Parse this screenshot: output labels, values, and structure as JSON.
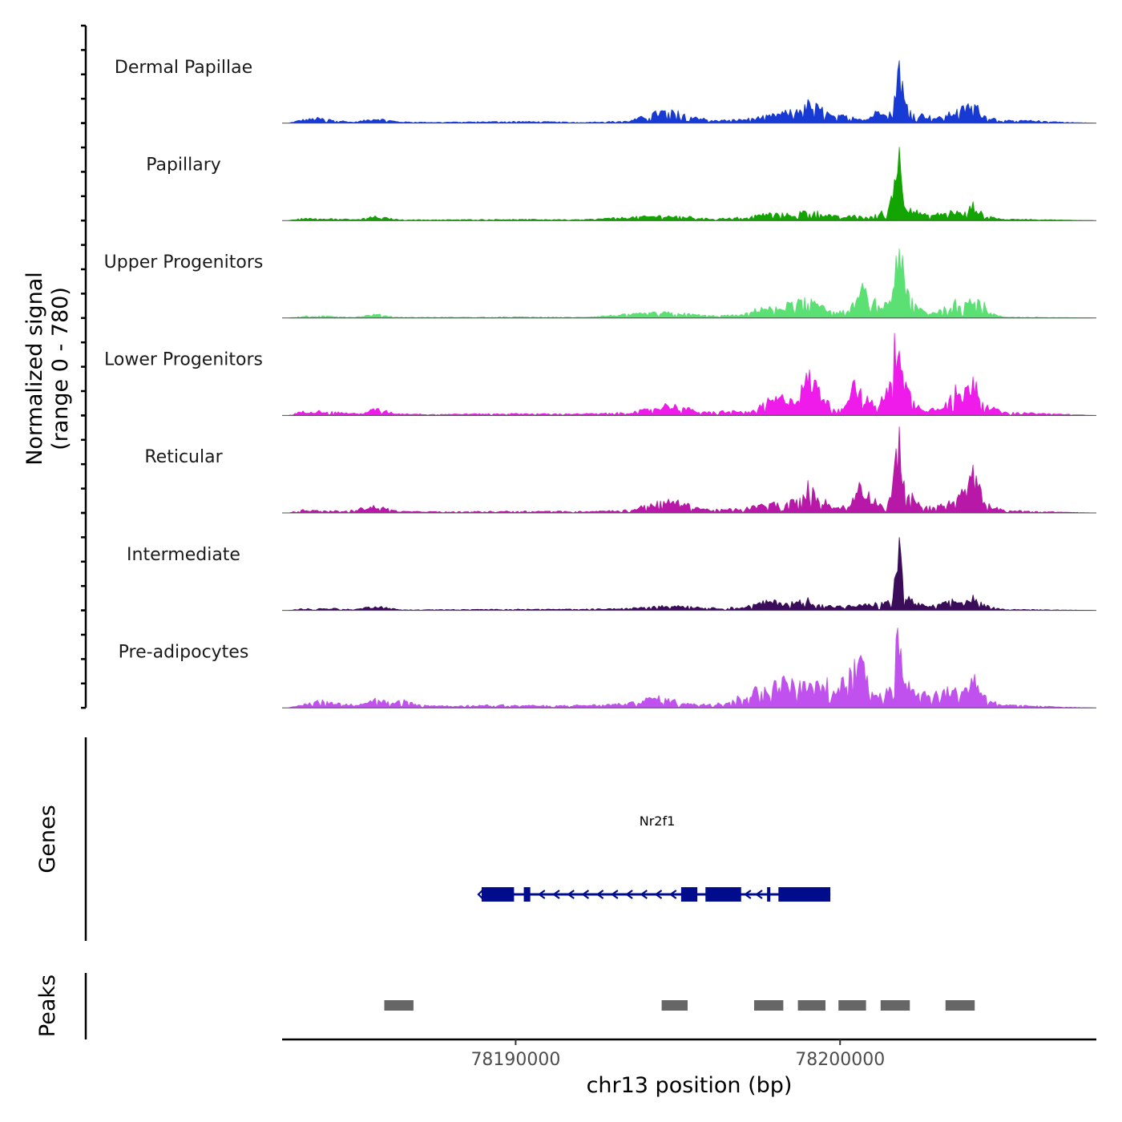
{
  "chart_data": {
    "type": "area",
    "title": "",
    "y_axis_title": "Normalized signal",
    "y_axis_subtitle": "(range 0 - 780)",
    "ylim": [
      0,
      780
    ],
    "xlabel": "chr13 position (bp)",
    "xlim": [
      78182800,
      78207900
    ],
    "x_ticks": [
      {
        "value": 78190000,
        "label": "78190000"
      },
      {
        "value": 78200000,
        "label": "78200000"
      }
    ],
    "tracks": [
      {
        "name": "Dermal Papillae",
        "color": "#1739d4",
        "peak_scale": 0.62,
        "profile": [
          [
            78183000,
            0
          ],
          [
            78183400,
            8
          ],
          [
            78183900,
            12
          ],
          [
            78184400,
            8
          ],
          [
            78185000,
            2
          ],
          [
            78185700,
            12
          ],
          [
            78186400,
            3
          ],
          [
            78187500,
            2
          ],
          [
            78188500,
            3
          ],
          [
            78190000,
            4
          ],
          [
            78191200,
            3
          ],
          [
            78192000,
            2
          ],
          [
            78193500,
            5
          ],
          [
            78194500,
            30
          ],
          [
            78195200,
            25
          ],
          [
            78196000,
            6
          ],
          [
            78197000,
            9
          ],
          [
            78197800,
            18
          ],
          [
            78198500,
            30
          ],
          [
            78199000,
            50
          ],
          [
            78199400,
            38
          ],
          [
            78199800,
            15
          ],
          [
            78200300,
            20
          ],
          [
            78200800,
            8
          ],
          [
            78201300,
            40
          ],
          [
            78201600,
            28
          ],
          [
            78201800,
            165
          ],
          [
            78202000,
            50
          ],
          [
            78202300,
            25
          ],
          [
            78202600,
            20
          ],
          [
            78203000,
            12
          ],
          [
            78203500,
            28
          ],
          [
            78203900,
            40
          ],
          [
            78204100,
            55
          ],
          [
            78204400,
            20
          ],
          [
            78205000,
            6
          ],
          [
            78206000,
            6
          ],
          [
            78207000,
            2
          ],
          [
            78207800,
            0
          ]
        ]
      },
      {
        "name": "Papillary",
        "color": "#12a400",
        "peak_scale": 0.68,
        "profile": [
          [
            78183000,
            0
          ],
          [
            78183400,
            5
          ],
          [
            78184400,
            5
          ],
          [
            78185000,
            2
          ],
          [
            78185700,
            10
          ],
          [
            78186400,
            2
          ],
          [
            78188000,
            2
          ],
          [
            78190000,
            3
          ],
          [
            78192000,
            2
          ],
          [
            78194500,
            12
          ],
          [
            78195200,
            10
          ],
          [
            78196000,
            4
          ],
          [
            78197000,
            8
          ],
          [
            78197800,
            18
          ],
          [
            78198500,
            15
          ],
          [
            78199000,
            25
          ],
          [
            78199500,
            18
          ],
          [
            78200000,
            8
          ],
          [
            78200500,
            12
          ],
          [
            78201000,
            10
          ],
          [
            78201500,
            30
          ],
          [
            78201800,
            180
          ],
          [
            78202000,
            45
          ],
          [
            78202300,
            25
          ],
          [
            78202700,
            12
          ],
          [
            78203100,
            18
          ],
          [
            78203500,
            25
          ],
          [
            78203800,
            15
          ],
          [
            78204100,
            40
          ],
          [
            78204400,
            15
          ],
          [
            78205000,
            3
          ],
          [
            78206000,
            3
          ],
          [
            78207000,
            1
          ],
          [
            78207800,
            0
          ]
        ]
      },
      {
        "name": "Upper Progenitors",
        "color": "#5ae073",
        "peak_scale": 0.8,
        "profile": [
          [
            78183000,
            0
          ],
          [
            78183400,
            5
          ],
          [
            78184400,
            5
          ],
          [
            78185000,
            2
          ],
          [
            78185700,
            10
          ],
          [
            78186400,
            2
          ],
          [
            78188000,
            2
          ],
          [
            78190000,
            3
          ],
          [
            78192000,
            2
          ],
          [
            78194500,
            15
          ],
          [
            78195200,
            12
          ],
          [
            78196000,
            6
          ],
          [
            78197000,
            8
          ],
          [
            78197600,
            30
          ],
          [
            78198000,
            25
          ],
          [
            78198500,
            40
          ],
          [
            78199000,
            55
          ],
          [
            78199400,
            45
          ],
          [
            78199800,
            15
          ],
          [
            78200300,
            22
          ],
          [
            78200700,
            80
          ],
          [
            78201000,
            50
          ],
          [
            78201300,
            30
          ],
          [
            78201600,
            60
          ],
          [
            78201800,
            230
          ],
          [
            78202000,
            80
          ],
          [
            78202300,
            40
          ],
          [
            78202700,
            12
          ],
          [
            78203200,
            25
          ],
          [
            78203500,
            45
          ],
          [
            78203800,
            35
          ],
          [
            78204000,
            70
          ],
          [
            78204300,
            55
          ],
          [
            78204600,
            15
          ],
          [
            78205000,
            3
          ],
          [
            78206000,
            2
          ],
          [
            78207000,
            1
          ],
          [
            78207800,
            0
          ]
        ]
      },
      {
        "name": "Lower Progenitors",
        "color": "#ee1bea",
        "peak_scale": 0.92,
        "profile": [
          [
            78183000,
            0
          ],
          [
            78183400,
            10
          ],
          [
            78184000,
            12
          ],
          [
            78184600,
            8
          ],
          [
            78185200,
            4
          ],
          [
            78185700,
            18
          ],
          [
            78186300,
            5
          ],
          [
            78187500,
            3
          ],
          [
            78188500,
            4
          ],
          [
            78190000,
            5
          ],
          [
            78191200,
            4
          ],
          [
            78192500,
            5
          ],
          [
            78193500,
            8
          ],
          [
            78194200,
            18
          ],
          [
            78194700,
            30
          ],
          [
            78195200,
            20
          ],
          [
            78195800,
            8
          ],
          [
            78196500,
            12
          ],
          [
            78197300,
            10
          ],
          [
            78197800,
            40
          ],
          [
            78198300,
            50
          ],
          [
            78198700,
            45
          ],
          [
            78199000,
            110
          ],
          [
            78199300,
            80
          ],
          [
            78199700,
            25
          ],
          [
            78200100,
            20
          ],
          [
            78200400,
            100
          ],
          [
            78200700,
            55
          ],
          [
            78201100,
            25
          ],
          [
            78201500,
            70
          ],
          [
            78201800,
            260
          ],
          [
            78202000,
            90
          ],
          [
            78202300,
            30
          ],
          [
            78202700,
            15
          ],
          [
            78203100,
            25
          ],
          [
            78203500,
            70
          ],
          [
            78203800,
            55
          ],
          [
            78204100,
            110
          ],
          [
            78204500,
            30
          ],
          [
            78205000,
            8
          ],
          [
            78206000,
            6
          ],
          [
            78207000,
            3
          ],
          [
            78207800,
            0
          ]
        ]
      },
      {
        "name": "Reticular",
        "color": "#b818a8",
        "peak_scale": 0.78,
        "profile": [
          [
            78183000,
            0
          ],
          [
            78183400,
            8
          ],
          [
            78184000,
            6
          ],
          [
            78184800,
            5
          ],
          [
            78185700,
            20
          ],
          [
            78186400,
            4
          ],
          [
            78188000,
            3
          ],
          [
            78190000,
            5
          ],
          [
            78192000,
            4
          ],
          [
            78193500,
            8
          ],
          [
            78194200,
            25
          ],
          [
            78194800,
            35
          ],
          [
            78195400,
            20
          ],
          [
            78196000,
            8
          ],
          [
            78197000,
            12
          ],
          [
            78197800,
            25
          ],
          [
            78198300,
            30
          ],
          [
            78198800,
            35
          ],
          [
            78199000,
            75
          ],
          [
            78199300,
            50
          ],
          [
            78199800,
            15
          ],
          [
            78200300,
            20
          ],
          [
            78200600,
            90
          ],
          [
            78200900,
            50
          ],
          [
            78201300,
            20
          ],
          [
            78201600,
            45
          ],
          [
            78201800,
            230
          ],
          [
            78202000,
            75
          ],
          [
            78202300,
            35
          ],
          [
            78202700,
            15
          ],
          [
            78203200,
            25
          ],
          [
            78203500,
            35
          ],
          [
            78203800,
            60
          ],
          [
            78204100,
            110
          ],
          [
            78204500,
            25
          ],
          [
            78205000,
            8
          ],
          [
            78206000,
            4
          ],
          [
            78207000,
            2
          ],
          [
            78207800,
            0
          ]
        ]
      },
      {
        "name": "Intermediate",
        "color": "#3a0c5a",
        "peak_scale": 0.62,
        "profile": [
          [
            78183000,
            0
          ],
          [
            78183400,
            4
          ],
          [
            78184400,
            5
          ],
          [
            78185000,
            2
          ],
          [
            78185700,
            12
          ],
          [
            78186400,
            2
          ],
          [
            78188000,
            2
          ],
          [
            78190000,
            3
          ],
          [
            78192000,
            3
          ],
          [
            78193500,
            5
          ],
          [
            78194500,
            15
          ],
          [
            78195200,
            12
          ],
          [
            78196000,
            6
          ],
          [
            78197000,
            8
          ],
          [
            78197800,
            25
          ],
          [
            78198300,
            20
          ],
          [
            78198700,
            22
          ],
          [
            78199000,
            30
          ],
          [
            78199400,
            18
          ],
          [
            78199800,
            10
          ],
          [
            78200300,
            12
          ],
          [
            78200800,
            15
          ],
          [
            78201300,
            20
          ],
          [
            78201600,
            25
          ],
          [
            78201800,
            175
          ],
          [
            78202000,
            45
          ],
          [
            78202300,
            20
          ],
          [
            78202700,
            10
          ],
          [
            78203200,
            18
          ],
          [
            78203500,
            28
          ],
          [
            78203800,
            20
          ],
          [
            78204100,
            35
          ],
          [
            78204400,
            15
          ],
          [
            78205000,
            3
          ],
          [
            78206000,
            2
          ],
          [
            78207000,
            1
          ],
          [
            78207800,
            0
          ]
        ]
      },
      {
        "name": "Pre-adipocytes",
        "color": "#c151ee",
        "peak_scale": 0.8,
        "profile": [
          [
            78183000,
            0
          ],
          [
            78183400,
            8
          ],
          [
            78183900,
            20
          ],
          [
            78184400,
            15
          ],
          [
            78185000,
            8
          ],
          [
            78185700,
            25
          ],
          [
            78186200,
            12
          ],
          [
            78186600,
            22
          ],
          [
            78187000,
            8
          ],
          [
            78188000,
            5
          ],
          [
            78189500,
            8
          ],
          [
            78191000,
            6
          ],
          [
            78192500,
            8
          ],
          [
            78193500,
            12
          ],
          [
            78194300,
            30
          ],
          [
            78194900,
            20
          ],
          [
            78195500,
            10
          ],
          [
            78196500,
            15
          ],
          [
            78197400,
            50
          ],
          [
            78197900,
            65
          ],
          [
            78198300,
            75
          ],
          [
            78198700,
            65
          ],
          [
            78199200,
            60
          ],
          [
            78199600,
            70
          ],
          [
            78199900,
            40
          ],
          [
            78200300,
            130
          ],
          [
            78200600,
            155
          ],
          [
            78200900,
            70
          ],
          [
            78201300,
            35
          ],
          [
            78201600,
            60
          ],
          [
            78201800,
            235
          ],
          [
            78202000,
            80
          ],
          [
            78202300,
            60
          ],
          [
            78202700,
            40
          ],
          [
            78203100,
            45
          ],
          [
            78203500,
            50
          ],
          [
            78203900,
            55
          ],
          [
            78204100,
            90
          ],
          [
            78204500,
            30
          ],
          [
            78205000,
            8
          ],
          [
            78206000,
            5
          ],
          [
            78207000,
            2
          ],
          [
            78207800,
            0
          ]
        ]
      }
    ],
    "genes_track": {
      "label": "Genes",
      "gene_name": "Nr2f1",
      "color": "#000c8c",
      "strand": "-",
      "start": 78188950,
      "end": 78199700,
      "exons": [
        [
          78188950,
          78189950
        ],
        [
          78190250,
          78190450
        ],
        [
          78195100,
          78195600
        ],
        [
          78195850,
          78196950
        ],
        [
          78197750,
          78197850
        ],
        [
          78198100,
          78199700
        ]
      ],
      "intron_arrows": [
        78190800,
        78191250,
        78191700,
        78192150,
        78192600,
        78193050,
        78193500,
        78193950,
        78194400,
        78194850,
        78197150,
        78197500
      ]
    },
    "peaks_track": {
      "label": "Peaks",
      "color": "#666666",
      "intervals": [
        [
          78185950,
          78186850
        ],
        [
          78194500,
          78195300
        ],
        [
          78197350,
          78198250
        ],
        [
          78198700,
          78199550
        ],
        [
          78199950,
          78200800
        ],
        [
          78201250,
          78202150
        ],
        [
          78203250,
          78204150
        ]
      ]
    }
  }
}
